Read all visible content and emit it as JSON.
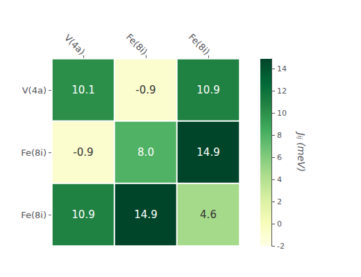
{
  "chart_data": {
    "type": "heatmap",
    "x": [
      "V(4a)",
      "Fe(8i)",
      "Fe(8i)"
    ],
    "y": [
      "V(4a)",
      "Fe(8i)",
      "Fe(8i)"
    ],
    "values": [
      [
        10.1,
        -0.9,
        10.9
      ],
      [
        -0.9,
        8.0,
        14.9
      ],
      [
        10.9,
        14.9,
        4.6
      ]
    ],
    "value_labels": [
      [
        "10.1",
        "-0.9",
        "10.9"
      ],
      [
        "-0.9",
        "8.0",
        "14.9"
      ],
      [
        "10.9",
        "14.9",
        "4.6"
      ]
    ],
    "data_labels": true,
    "colorbar_label": "Jᵢⱼ (meV)",
    "colorbar_range": [
      -2,
      14.9
    ],
    "colorbar_ticks": [
      -2,
      0,
      2,
      4,
      6,
      8,
      10,
      12,
      14
    ]
  }
}
